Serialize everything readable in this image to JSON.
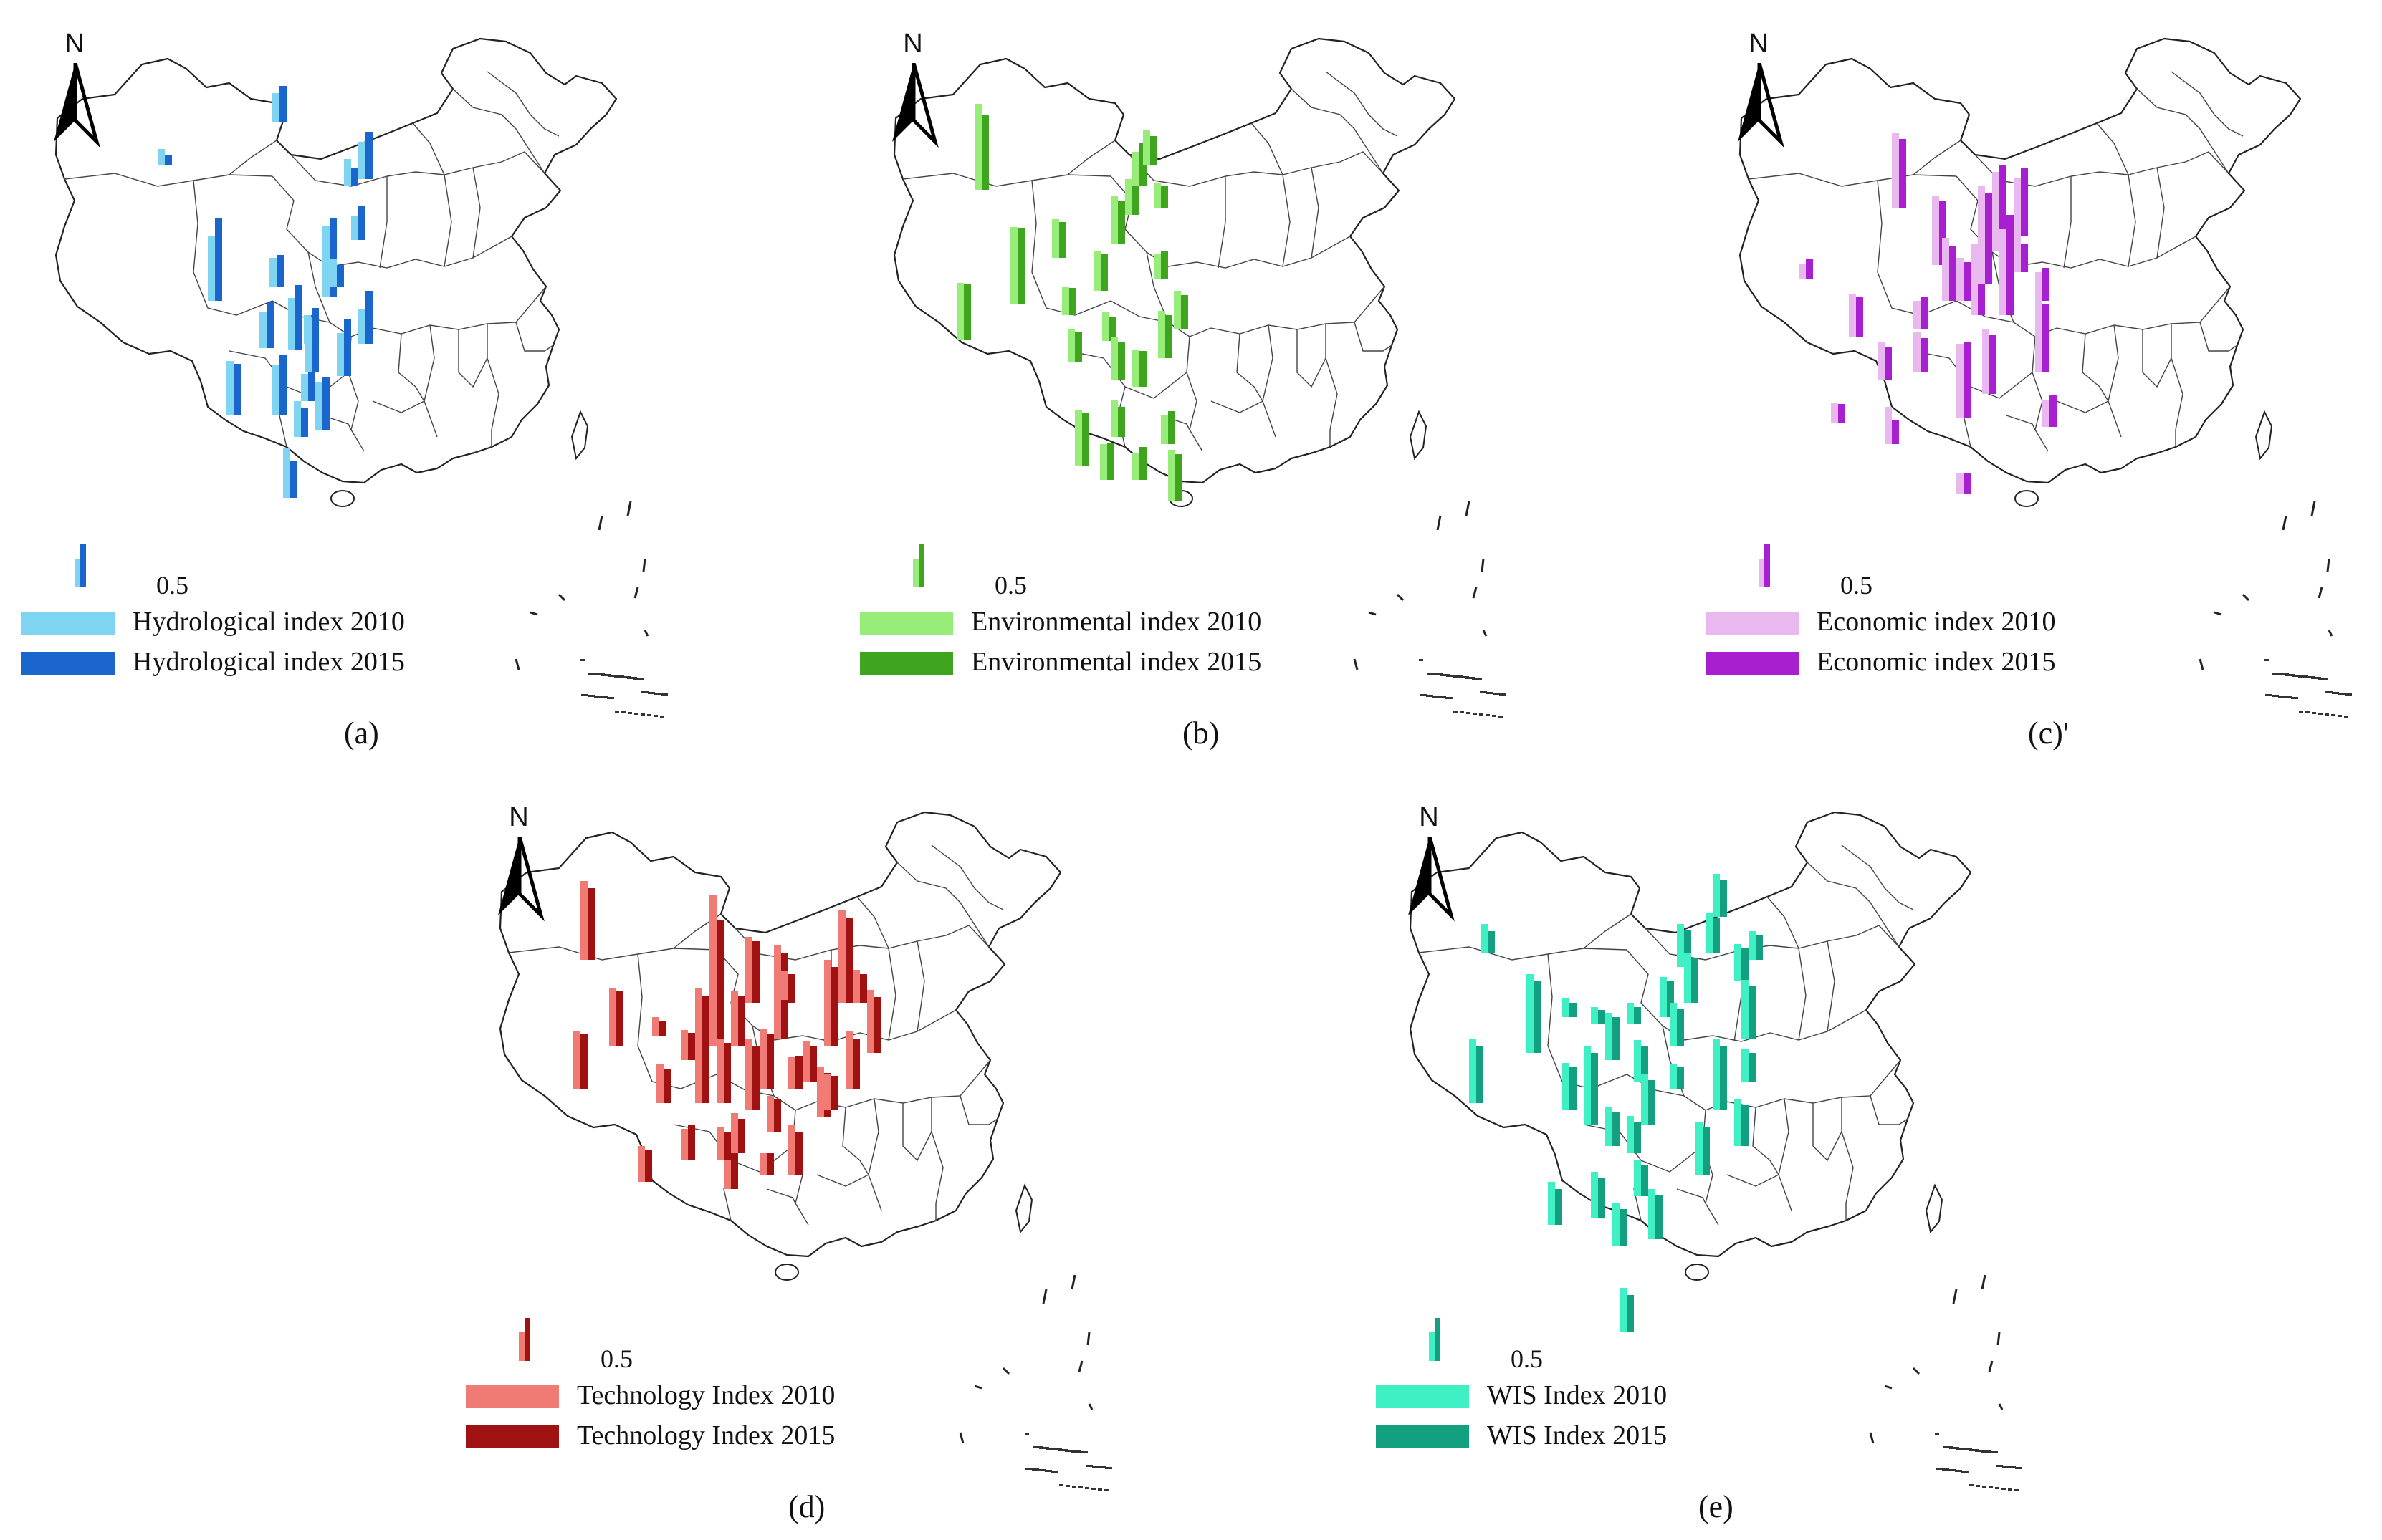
{
  "panels": [
    {
      "id": "a",
      "caption": "(a)",
      "north_label": "N",
      "scale_label": "0.5",
      "legend": [
        {
          "label": "Hydrological index 2010",
          "color": "#7fd4f2"
        },
        {
          "label": "Hydrological index 2015",
          "color": "#1a66cc"
        }
      ],
      "icon": "china-province-map",
      "north_icon": "north-arrow-icon"
    },
    {
      "id": "b",
      "caption": "(b)",
      "north_label": "N",
      "scale_label": "0.5",
      "legend": [
        {
          "label": "Environmental index 2010",
          "color": "#98ec7a"
        },
        {
          "label": "Environmental index 2015",
          "color": "#3fa51e"
        }
      ],
      "icon": "china-province-map",
      "north_icon": "north-arrow-icon"
    },
    {
      "id": "c",
      "caption": "(c)'",
      "north_label": "N",
      "scale_label": "0.5",
      "legend": [
        {
          "label": "Economic index 2010",
          "color": "#e8b8ef"
        },
        {
          "label": "Economic index 2015",
          "color": "#a81fcf"
        }
      ],
      "icon": "china-province-map",
      "north_icon": "north-arrow-icon"
    },
    {
      "id": "d",
      "caption": "(d)",
      "north_label": "N",
      "scale_label": "0.5",
      "legend": [
        {
          "label": "Technology Index 2010",
          "color": "#ef7b74"
        },
        {
          "label": "Technology Index 2015",
          "color": "#a01212"
        }
      ],
      "icon": "china-province-map",
      "north_icon": "north-arrow-icon"
    },
    {
      "id": "e",
      "caption": "(e)",
      "north_label": "N",
      "scale_label": "0.5",
      "legend": [
        {
          "label": "WIS Index 2010",
          "color": "#3ef0c4"
        },
        {
          "label": "WIS Index 2015",
          "color": "#13a080"
        }
      ],
      "icon": "china-province-map",
      "north_icon": "north-arrow-icon"
    }
  ]
}
